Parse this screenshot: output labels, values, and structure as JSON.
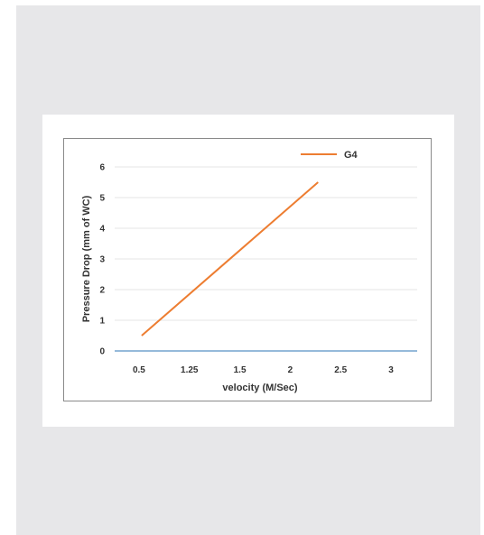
{
  "chart_data": {
    "type": "line",
    "x": [
      "0.5",
      "1.25",
      "1.5",
      "2",
      "2.5",
      "3"
    ],
    "ylim": [
      0,
      6
    ],
    "y_ticks": [
      "0",
      "1",
      "2",
      "3",
      "4",
      "5",
      "6"
    ],
    "xlabel": "velocity (M/Sec)",
    "ylabel": "Pressure Drop (mm of WC)",
    "grid": true,
    "legend_position": "top-right",
    "series": [
      {
        "name": "G4",
        "color": "#ed7d31",
        "x": [
          "0.5",
          "2.5"
        ],
        "values": [
          0.5,
          5.5
        ]
      }
    ]
  }
}
